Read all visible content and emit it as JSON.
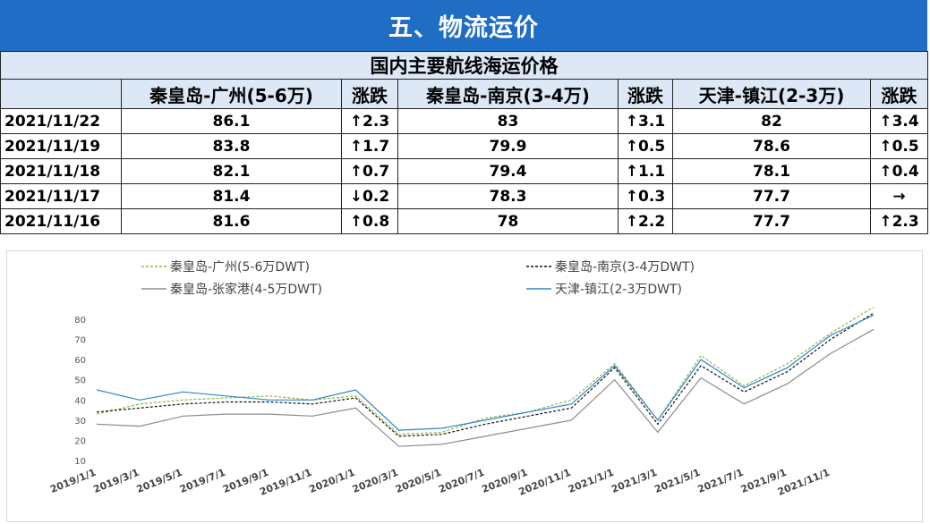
{
  "header": {
    "title": "五、物流运价"
  },
  "table": {
    "subtitle": "国内主要航线海运价格",
    "columns": [
      "",
      "秦皇岛-广州(5-6万)",
      "涨跌",
      "秦皇岛-南京(3-4万)",
      "涨跌",
      "天津-镇江(2-3万)",
      "涨跌"
    ],
    "rows": [
      {
        "date": "2021/11/22",
        "v1": "86.1",
        "c1": {
          "text": "↑2.3",
          "dir": "up"
        },
        "v2": "83",
        "c2": {
          "text": "↑3.1",
          "dir": "up"
        },
        "v3": "82",
        "c3": {
          "text": "↑3.4",
          "dir": "up"
        }
      },
      {
        "date": "2021/11/19",
        "v1": "83.8",
        "c1": {
          "text": "↑1.7",
          "dir": "up"
        },
        "v2": "79.9",
        "c2": {
          "text": "↑0.5",
          "dir": "up"
        },
        "v3": "78.6",
        "c3": {
          "text": "↑0.5",
          "dir": "up"
        }
      },
      {
        "date": "2021/11/18",
        "v1": "82.1",
        "c1": {
          "text": "↑0.7",
          "dir": "up"
        },
        "v2": "79.4",
        "c2": {
          "text": "↑1.1",
          "dir": "up"
        },
        "v3": "78.1",
        "c3": {
          "text": "↑0.4",
          "dir": "up"
        }
      },
      {
        "date": "2021/11/17",
        "v1": "81.4",
        "c1": {
          "text": "↓0.2",
          "dir": "down"
        },
        "v2": "78.3",
        "c2": {
          "text": "↑0.3",
          "dir": "up"
        },
        "v3": "77.7",
        "c3": {
          "text": "→",
          "dir": "flat"
        }
      },
      {
        "date": "2021/11/16",
        "v1": "81.6",
        "c1": {
          "text": "↑0.8",
          "dir": "up"
        },
        "v2": "78",
        "c2": {
          "text": "↑2.2",
          "dir": "up"
        },
        "v3": "77.7",
        "c3": {
          "text": "↑2.3",
          "dir": "up"
        }
      }
    ]
  },
  "colors": {
    "banner": "#1f6dc4",
    "header_fill": "#dce8f6",
    "up": "#e01010",
    "down": "#19a34a",
    "flat": "#1f49d6"
  },
  "chart_data": {
    "type": "line",
    "ylim": [
      10,
      80
    ],
    "yticks": [
      10,
      20,
      30,
      40,
      50,
      60,
      70,
      80
    ],
    "x": [
      "2019/1/1",
      "2019/3/1",
      "2019/5/1",
      "2019/7/1",
      "2019/9/1",
      "2019/11/1",
      "2020/1/1",
      "2020/3/1",
      "2020/5/1",
      "2020/7/1",
      "2020/9/1",
      "2020/11/1",
      "2021/1/1",
      "2021/3/1",
      "2021/5/1",
      "2021/7/1",
      "2021/9/1",
      "2021/11/1",
      "2021/11/22"
    ],
    "xtick_labels": [
      "2019/1/1",
      "2019/3/1",
      "2019/5/1",
      "2019/7/1",
      "2019/9/1",
      "2019/11/1",
      "2020/1/1",
      "2020/3/1",
      "2020/5/1",
      "2020/7/1",
      "2020/9/1",
      "2020/11/1",
      "2021/1/1",
      "2021/3/1",
      "2021/5/1",
      "2021/7/1",
      "2021/9/1",
      "2021/11/1"
    ],
    "legend_position": "top",
    "series": [
      {
        "name": "秦皇岛-广州(5-6万DWT)",
        "color": "#8db83a",
        "dash": "3,2",
        "values": [
          33,
          38,
          40,
          41,
          42,
          40,
          42,
          23,
          24,
          31,
          34,
          40,
          58,
          30,
          62,
          47,
          58,
          73,
          86
        ]
      },
      {
        "name": "秦皇岛-南京(3-4万DWT)",
        "color": "#111111",
        "dash": "3,2",
        "values": [
          34,
          36,
          38,
          39,
          39,
          38,
          41,
          22,
          23,
          28,
          32,
          36,
          56,
          28,
          57,
          44,
          54,
          70,
          83
        ]
      },
      {
        "name": "秦皇岛-张家港(4-5万DWT)",
        "color": "#8c8c8c",
        "dash": "",
        "values": [
          28,
          27,
          32,
          33,
          33,
          32,
          36,
          17,
          18,
          22,
          26,
          30,
          50,
          24,
          51,
          38,
          48,
          63,
          75
        ]
      },
      {
        "name": "天津-镇江(2-3万DWT)",
        "color": "#2e86c8",
        "dash": "",
        "values": [
          45,
          40,
          44,
          42,
          40,
          40,
          45,
          25,
          26,
          30,
          34,
          38,
          57,
          30,
          60,
          46,
          56,
          72,
          82
        ]
      }
    ]
  }
}
